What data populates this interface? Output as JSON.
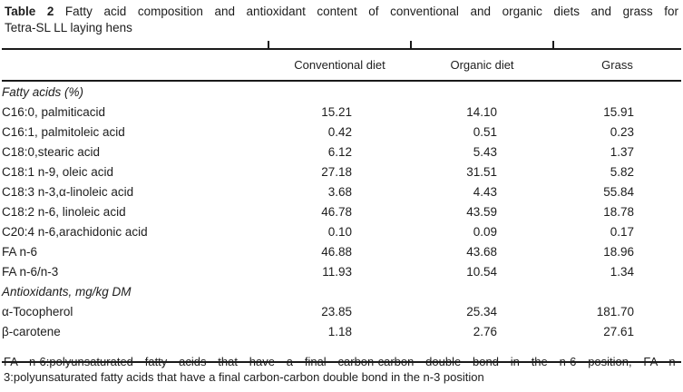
{
  "colors": {
    "ink": "#1a1a1a",
    "background": "#ffffff"
  },
  "title": {
    "bold": "Table 2",
    "line1_rest": "Fatty acid composition and antioxidant content of conventional and organic diets and grass for",
    "line2": "Tetra-SL LL laying hens"
  },
  "table": {
    "column_headers": [
      "Conventional diet",
      "Organic diet",
      "Grass"
    ],
    "sections": [
      {
        "header": "Fatty acids (%)",
        "rows": [
          {
            "label": "C16:0, palmiticacid",
            "values": [
              "15.21",
              "14.10",
              "15.91"
            ]
          },
          {
            "label": "C16:1, palmitoleic acid",
            "values": [
              "0.42",
              "0.51",
              "0.23"
            ]
          },
          {
            "label": "C18:0,stearic acid",
            "values": [
              "6.12",
              "5.43",
              "1.37"
            ]
          },
          {
            "label": "C18:1 n-9, oleic acid",
            "values": [
              "27.18",
              "31.51",
              "5.82"
            ]
          },
          {
            "label": "C18:3 n-3,α-linoleic acid",
            "values": [
              "3.68",
              "4.43",
              "55.84"
            ]
          },
          {
            "label": "C18:2 n-6, linoleic acid",
            "values": [
              "46.78",
              "43.59",
              "18.78"
            ]
          },
          {
            "label": "C20:4 n-6,arachidonic acid",
            "values": [
              "0.10",
              "0.09",
              "0.17"
            ]
          },
          {
            "label": "FA n-6",
            "values": [
              "46.88",
              "43.68",
              "18.96"
            ]
          },
          {
            "label": "FA n-6/n-3",
            "values": [
              "11.93",
              "10.54",
              "1.34"
            ]
          }
        ]
      },
      {
        "header": "Antioxidants, mg/kg DM",
        "rows": [
          {
            "label": "α-Tocopherol",
            "values": [
              "23.85",
              "25.34",
              "181.70"
            ]
          },
          {
            "label": "β-carotene",
            "values": [
              "1.18",
              "2.76",
              "27.61"
            ]
          }
        ]
      }
    ]
  },
  "footnote": {
    "line1": "FA n-6:polyunsaturated fatty acids that have a final carbon-carbon double bond in the n-6 position, FA n-",
    "line2": "3:polyunsaturated fatty acids that have a final carbon-carbon double bond in the n-3 position"
  }
}
